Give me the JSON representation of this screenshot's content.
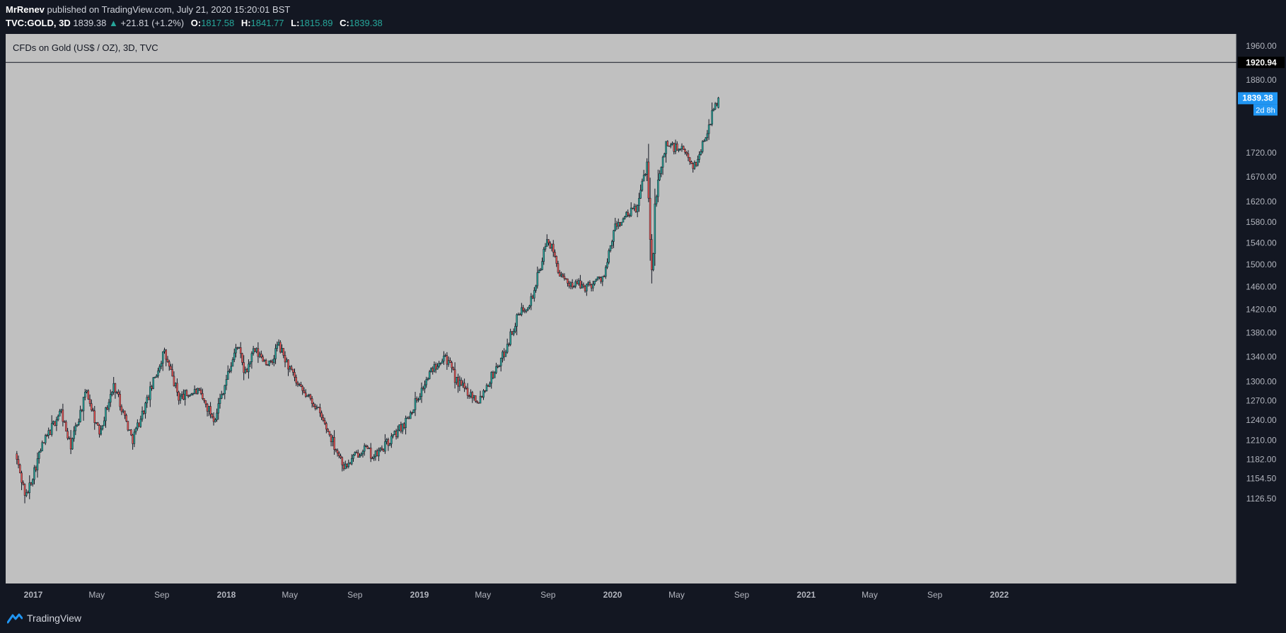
{
  "header": {
    "author": "MrRenev",
    "published_text": "published on TradingView.com, July 21, 2020 15:20:01 BST",
    "symbol": "TVC:GOLD, 3D",
    "last": "1839.38",
    "change_arrow": "▲",
    "change": "+21.81 (+1.2%)",
    "o_label": "O:",
    "o": "1817.58",
    "h_label": "H:",
    "h": "1841.77",
    "l_label": "L:",
    "l": "1815.89",
    "c_label": "C:",
    "c": "1839.38"
  },
  "chart_title": "CFDs on Gold (US$ / OZ), 3D, TVC",
  "price_badges": {
    "horizontal_line": "1920.94",
    "last_price": "1839.38",
    "countdown": "2d 8h"
  },
  "footer": {
    "brand": "TradingView"
  },
  "colors": {
    "background": "#131722",
    "pane": "#c0c0c0",
    "up": "#26a69a",
    "down": "#ef5350",
    "last_badge": "#2196f3"
  },
  "chart_data": {
    "type": "candlestick",
    "title": "CFDs on Gold (US$ / OZ), 3D, TVC",
    "scale": "log",
    "y_ticks": [
      "1960.00",
      "1880.00",
      "1720.00",
      "1670.00",
      "1620.00",
      "1580.00",
      "1540.00",
      "1500.00",
      "1460.00",
      "1420.00",
      "1380.00",
      "1340.00",
      "1300.00",
      "1270.00",
      "1240.00",
      "1210.00",
      "1182.00",
      "1154.50",
      "1126.50"
    ],
    "x_ticks": [
      "2017",
      "May",
      "Sep",
      "2018",
      "May",
      "Sep",
      "2019",
      "May",
      "Sep",
      "2020",
      "May",
      "Sep",
      "2021",
      "May",
      "Sep",
      "2022"
    ],
    "horizontal_line": 1920.94,
    "series_path": [
      [
        "2016-12-01",
        1190
      ],
      [
        "2016-12-21",
        1128
      ],
      [
        "2017-01-20",
        1200
      ],
      [
        "2017-02-25",
        1255
      ],
      [
        "2017-03-15",
        1200
      ],
      [
        "2017-04-15",
        1285
      ],
      [
        "2017-05-08",
        1220
      ],
      [
        "2017-06-06",
        1295
      ],
      [
        "2017-07-10",
        1210
      ],
      [
        "2017-08-05",
        1265
      ],
      [
        "2017-09-08",
        1348
      ],
      [
        "2017-10-06",
        1275
      ],
      [
        "2017-11-10",
        1285
      ],
      [
        "2017-12-12",
        1242
      ],
      [
        "2018-01-25",
        1360
      ],
      [
        "2018-02-08",
        1310
      ],
      [
        "2018-02-25",
        1350
      ],
      [
        "2018-03-30",
        1325
      ],
      [
        "2018-04-11",
        1362
      ],
      [
        "2018-05-20",
        1290
      ],
      [
        "2018-06-20",
        1265
      ],
      [
        "2018-08-16",
        1170
      ],
      [
        "2018-09-20",
        1200
      ],
      [
        "2018-10-10",
        1185
      ],
      [
        "2018-11-10",
        1210
      ],
      [
        "2018-12-10",
        1240
      ],
      [
        "2019-01-30",
        1322
      ],
      [
        "2019-02-20",
        1345
      ],
      [
        "2019-03-15",
        1300
      ],
      [
        "2019-04-25",
        1270
      ],
      [
        "2019-06-10",
        1340
      ],
      [
        "2019-07-10",
        1410
      ],
      [
        "2019-08-05",
        1440
      ],
      [
        "2019-09-04",
        1550
      ],
      [
        "2019-10-01",
        1470
      ],
      [
        "2019-11-15",
        1460
      ],
      [
        "2019-12-20",
        1480
      ],
      [
        "2020-01-08",
        1570
      ],
      [
        "2020-02-20",
        1610
      ],
      [
        "2020-03-09",
        1700
      ],
      [
        "2020-03-19",
        1460
      ],
      [
        "2020-03-24",
        1620
      ],
      [
        "2020-04-14",
        1740
      ],
      [
        "2020-05-20",
        1720
      ],
      [
        "2020-06-08",
        1690
      ],
      [
        "2020-07-21",
        1839.38
      ]
    ],
    "last_candle": {
      "date": "2020-07-21",
      "open": 1817.58,
      "high": 1841.77,
      "low": 1815.89,
      "close": 1839.38
    }
  }
}
